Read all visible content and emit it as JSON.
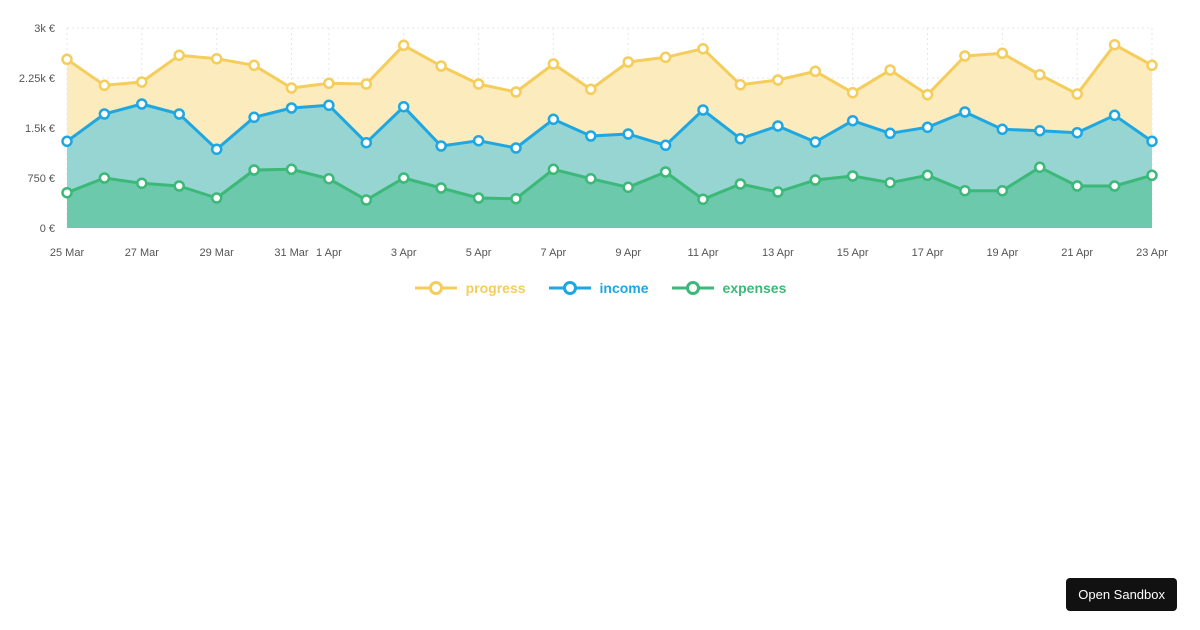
{
  "chart_data": {
    "type": "area",
    "stacked": true,
    "x": [
      "25 Mar",
      "26 Mar",
      "27 Mar",
      "28 Mar",
      "29 Mar",
      "30 Mar",
      "31 Mar",
      "1 Apr",
      "2 Apr",
      "3 Apr",
      "4 Apr",
      "5 Apr",
      "6 Apr",
      "7 Apr",
      "8 Apr",
      "9 Apr",
      "10 Apr",
      "11 Apr",
      "12 Apr",
      "13 Apr",
      "14 Apr",
      "15 Apr",
      "16 Apr",
      "17 Apr",
      "18 Apr",
      "19 Apr",
      "20 Apr",
      "21 Apr",
      "22 Apr",
      "23 Apr"
    ],
    "x_tick_labels": [
      "25 Mar",
      "27 Mar",
      "29 Mar",
      "31 Mar",
      "1 Apr",
      "3 Apr",
      "5 Apr",
      "7 Apr",
      "9 Apr",
      "11 Apr",
      "13 Apr",
      "15 Apr",
      "17 Apr",
      "19 Apr",
      "21 Apr",
      "23 Apr"
    ],
    "y_ticks": [
      0,
      750,
      1500,
      2250,
      3000
    ],
    "y_tick_labels": [
      "0 €",
      "750 €",
      "1.5k €",
      "2.25k €",
      "3k €"
    ],
    "ylim": [
      0,
      3000
    ],
    "grid": true,
    "legend_position": "bottom-center",
    "series": [
      {
        "name": "expenses",
        "color": "#3cb878",
        "fill": "#6cc9ac",
        "values": [
          530,
          750,
          670,
          630,
          450,
          870,
          880,
          740,
          420,
          750,
          600,
          450,
          440,
          880,
          740,
          610,
          840,
          430,
          660,
          540,
          720,
          780,
          680,
          790,
          560,
          560,
          910,
          630,
          630,
          790
        ]
      },
      {
        "name": "income",
        "color": "#1ea7e1",
        "fill": "#96d5d1",
        "values": [
          770,
          960,
          1190,
          1080,
          730,
          790,
          920,
          1100,
          860,
          1070,
          630,
          860,
          760,
          750,
          640,
          800,
          400,
          1340,
          680,
          990,
          570,
          830,
          740,
          720,
          1180,
          920,
          550,
          800,
          1060,
          510
        ]
      },
      {
        "name": "progress",
        "color": "#f5cd5b",
        "fill": "#fcebbc",
        "values": [
          1230,
          430,
          330,
          880,
          1360,
          780,
          300,
          330,
          880,
          920,
          1200,
          850,
          840,
          830,
          700,
          1080,
          1320,
          920,
          810,
          690,
          1060,
          420,
          950,
          490,
          840,
          1140,
          840,
          580,
          1060,
          1140
        ]
      }
    ]
  },
  "sandbox_button": {
    "label": "Open Sandbox"
  }
}
